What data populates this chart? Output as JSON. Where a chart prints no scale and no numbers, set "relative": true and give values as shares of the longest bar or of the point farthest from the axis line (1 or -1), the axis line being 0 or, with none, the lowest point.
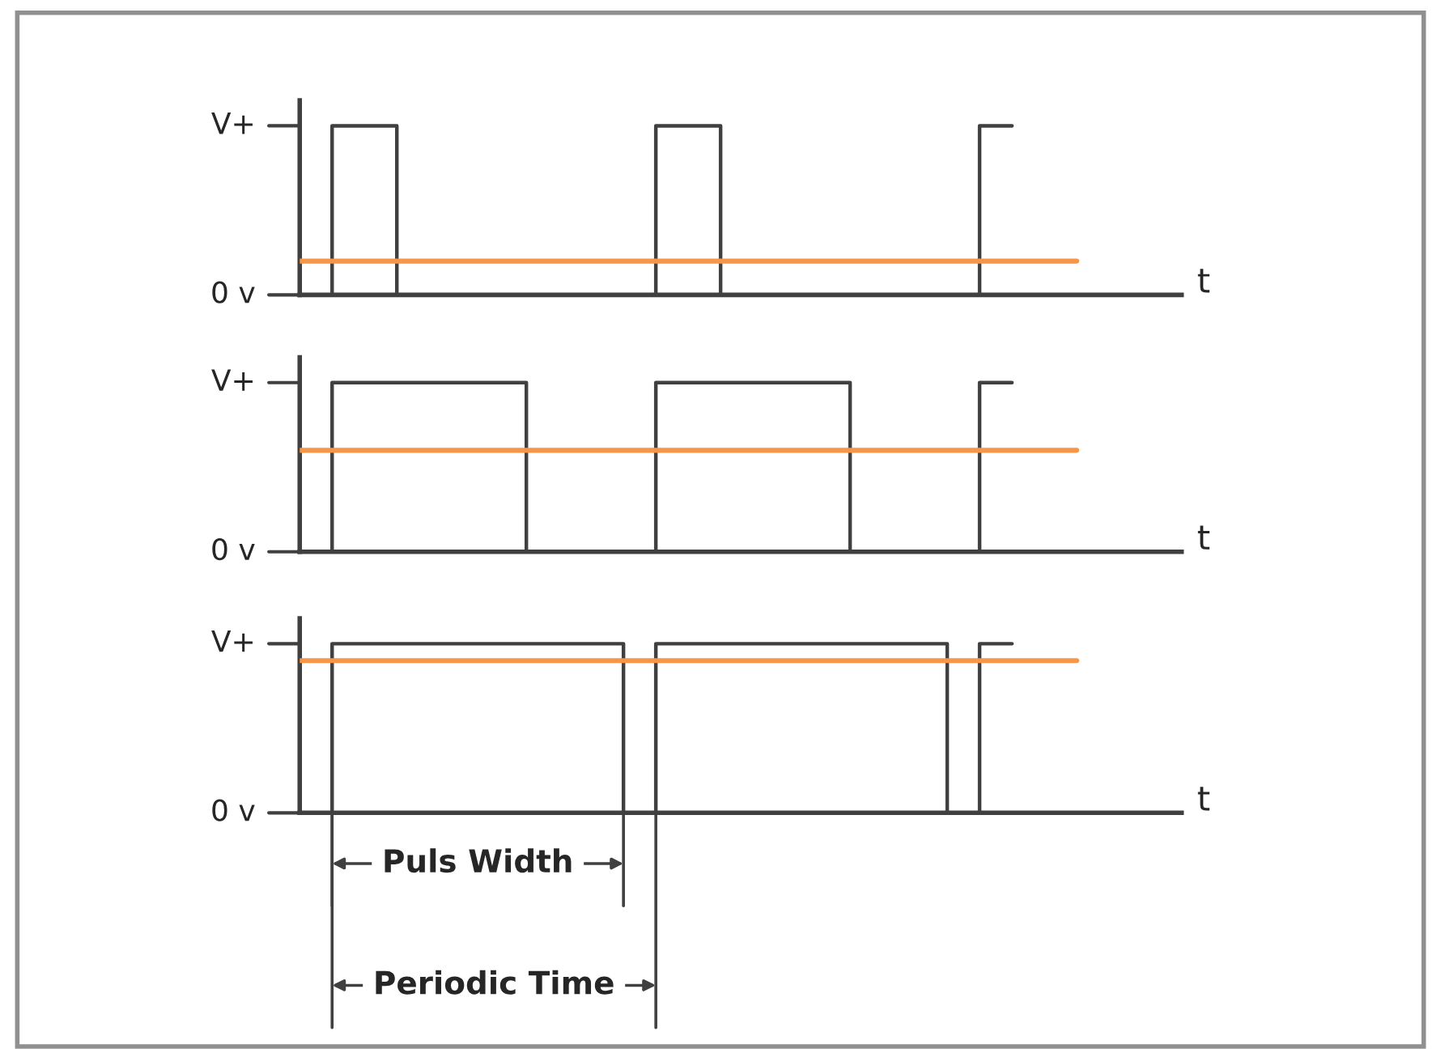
{
  "chart_data": [
    {
      "type": "step",
      "xlabel": "t",
      "categories": [
        null,
        null,
        null,
        null,
        null,
        null,
        null,
        null,
        null,
        null,
        null,
        null,
        null,
        null,
        null,
        null,
        null,
        null,
        null,
        null,
        null,
        null,
        null,
        null,
        null
      ],
      "relative": true,
      "annotations": [
        "V+",
        "0 v"
      ],
      "series": [
        {
          "type": "step",
          "color": "#404040",
          "values": [
            0,
            1,
            1,
            0,
            0,
            0,
            0,
            0,
            0,
            0,
            0,
            1,
            1,
            0,
            0,
            0,
            0,
            0,
            0,
            0,
            0,
            1,
            1,
            null,
            null
          ]
        },
        {
          "type": "line",
          "color": "#f79646",
          "values": [
            0.2,
            0.2,
            0.2,
            0.2,
            0.2,
            0.2,
            0.2,
            0.2,
            0.2,
            0.2,
            0.2,
            0.2,
            0.2,
            0.2,
            0.2,
            0.2,
            0.2,
            0.2,
            0.2,
            0.2,
            0.2,
            0.2,
            0.2,
            0.2,
            0.2
          ]
        }
      ]
    },
    {
      "type": "step",
      "xlabel": "t",
      "categories": [
        null,
        null,
        null,
        null,
        null,
        null,
        null,
        null,
        null,
        null,
        null,
        null,
        null,
        null,
        null,
        null,
        null,
        null,
        null,
        null,
        null,
        null,
        null,
        null,
        null
      ],
      "relative": true,
      "annotations": [
        "V+",
        "0 v"
      ],
      "series": [
        {
          "type": "step",
          "color": "#404040",
          "values": [
            0,
            1,
            1,
            1,
            1,
            1,
            1,
            0,
            0,
            0,
            0,
            1,
            1,
            1,
            1,
            1,
            1,
            0,
            0,
            0,
            0,
            1,
            1,
            null,
            null
          ]
        },
        {
          "type": "line",
          "color": "#f79646",
          "values": [
            0.6,
            0.6,
            0.6,
            0.6,
            0.6,
            0.6,
            0.6,
            0.6,
            0.6,
            0.6,
            0.6,
            0.6,
            0.6,
            0.6,
            0.6,
            0.6,
            0.6,
            0.6,
            0.6,
            0.6,
            0.6,
            0.6,
            0.6,
            0.6,
            0.6
          ]
        }
      ]
    },
    {
      "type": "step",
      "xlabel": "t",
      "categories": [
        null,
        null,
        null,
        null,
        null,
        null,
        null,
        null,
        null,
        null,
        null,
        null,
        null,
        null,
        null,
        null,
        null,
        null,
        null,
        null,
        null,
        null,
        null,
        null,
        null
      ],
      "relative": true,
      "series": [
        {
          "type": "step",
          "color": "#404040",
          "values": [
            0,
            1,
            1,
            1,
            1,
            1,
            1,
            1,
            1,
            1,
            0,
            1,
            1,
            1,
            1,
            1,
            1,
            1,
            1,
            1,
            0,
            1,
            1,
            null,
            null
          ]
        },
        {
          "type": "line",
          "color": "#f79646",
          "values": [
            0.9,
            0.9,
            0.9,
            0.9,
            0.9,
            0.9,
            0.9,
            0.9,
            0.9,
            0.9,
            0.9,
            0.9,
            0.9,
            0.9,
            0.9,
            0.9,
            0.9,
            0.9,
            0.9,
            0.9,
            0.9,
            0.9,
            0.9,
            0.9,
            0.9
          ]
        }
      ],
      "annotations": [
        "V+",
        "0 v",
        "Puls Width",
        "Periodic Time"
      ]
    }
  ]
}
